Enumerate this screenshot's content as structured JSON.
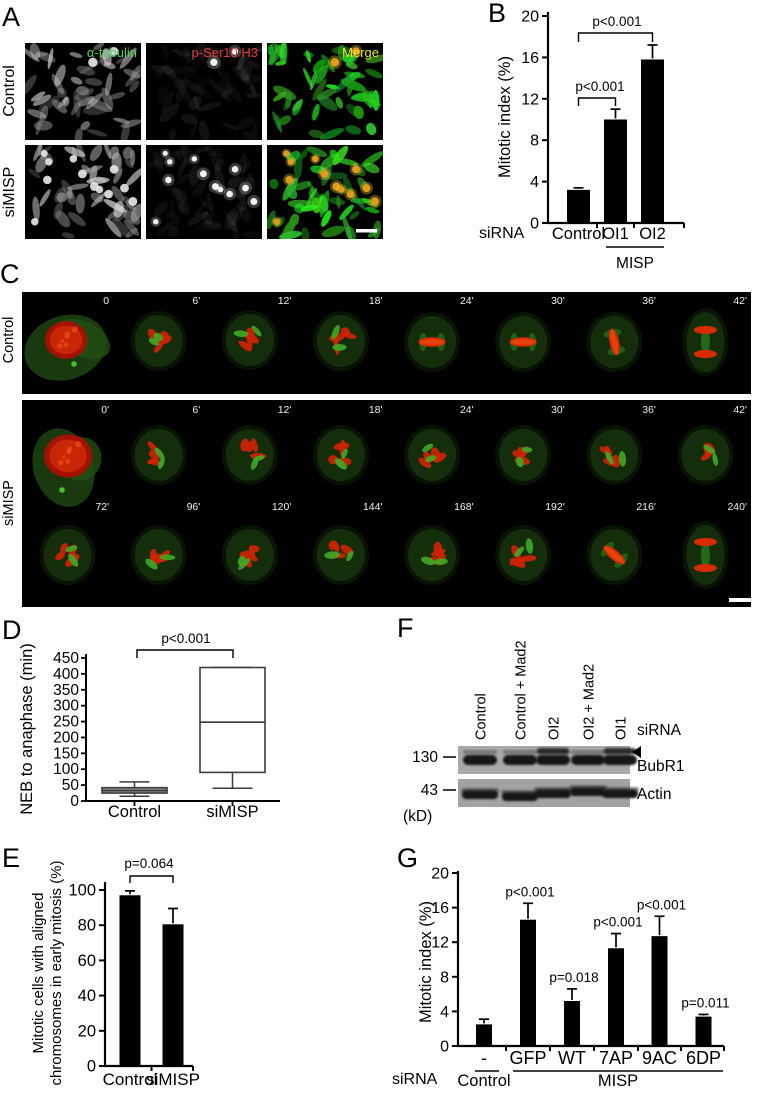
{
  "figure": {
    "panels": {
      "a": {
        "letter": "A",
        "rows": [
          "Control",
          "siMISP"
        ],
        "cols": [
          {
            "label": "α-tubulin",
            "color": "#55d455"
          },
          {
            "label": "p-Ser10 H3",
            "color": "#e83c3c"
          },
          {
            "label": "Merge",
            "color": "#e8e832"
          }
        ]
      },
      "b": {
        "letter": "B"
      },
      "c": {
        "letter": "C",
        "rows": [
          "Control",
          "siMISP"
        ],
        "control_times": [
          "0",
          "6'",
          "12'",
          "18'",
          "24'",
          "30'",
          "36'",
          "42'"
        ],
        "simisp_times_row1": [
          "0'",
          "6'",
          "12'",
          "18'",
          "24'",
          "30'",
          "36'",
          "42'"
        ],
        "simisp_times_row2": [
          "72'",
          "96'",
          "120'",
          "144'",
          "168'",
          "192'",
          "216'",
          "240'"
        ]
      },
      "d": {
        "letter": "D"
      },
      "e": {
        "letter": "E"
      },
      "f": {
        "letter": "F",
        "lanes": [
          "Control",
          "Control + Mad2",
          "OI2",
          "OI2 + Mad2",
          "OI1"
        ],
        "sirna_label": "siRNA",
        "marker_130": "130",
        "marker_43": "43",
        "kd_label": "(kD)",
        "band_labels": [
          "BubR1",
          "Actin"
        ]
      },
      "g": {
        "letter": "G"
      }
    }
  },
  "chart_data": [
    {
      "id": "B",
      "type": "bar",
      "ylabel": "Mitotic index (%)",
      "xlabel_prefix": "siRNA",
      "categories": [
        "Control",
        "OI1",
        "OI2"
      ],
      "values": [
        3.2,
        10.0,
        15.8
      ],
      "errors": [
        0.2,
        1.0,
        1.4
      ],
      "ylim": [
        0,
        20
      ],
      "yticks": [
        0,
        4,
        8,
        12,
        16,
        20
      ],
      "group_label": "MISP",
      "group_span": [
        "OI1",
        "OI2"
      ],
      "significance": [
        {
          "pair": [
            "Control",
            "OI1"
          ],
          "text": "p<0.001"
        },
        {
          "pair": [
            "Control",
            "OI2"
          ],
          "text": "p<0.001"
        }
      ]
    },
    {
      "id": "D",
      "type": "box",
      "ylabel": "NEB to anaphase (min)",
      "categories": [
        "Control",
        "siMISP"
      ],
      "boxes": [
        {
          "whisker_low": 15,
          "q1": 25,
          "median": 33,
          "q3": 42,
          "whisker_high": 60
        },
        {
          "whisker_low": 40,
          "q1": 90,
          "median": 248,
          "q3": 420,
          "whisker_high": 420
        }
      ],
      "ylim": [
        0,
        450
      ],
      "yticks": [
        0,
        50,
        100,
        150,
        200,
        250,
        300,
        350,
        400,
        450
      ],
      "significance": [
        {
          "pair": [
            "Control",
            "siMISP"
          ],
          "text": "p<0.001"
        }
      ]
    },
    {
      "id": "E",
      "type": "bar",
      "ylabel": "Mitotic cells with aligned chromosomes in early mitosis (%)",
      "ylabel_lines": [
        "Mitotic cells with aligned",
        "chromosomes in early mitosis (%)"
      ],
      "categories": [
        "Control",
        "siMISP"
      ],
      "values": [
        97,
        80.5
      ],
      "errors": [
        2.5,
        9
      ],
      "ylim": [
        0,
        100
      ],
      "yticks": [
        0,
        20,
        40,
        60,
        80,
        100
      ],
      "significance": [
        {
          "pair": [
            "Control",
            "siMISP"
          ],
          "text": "p=0.064"
        }
      ]
    },
    {
      "id": "G",
      "type": "bar",
      "ylabel": "Mitotic index (%)",
      "xlabel_prefix": "siRNA",
      "categories": [
        "-",
        "GFP",
        "WT",
        "7AP",
        "9AC",
        "6DP"
      ],
      "values": [
        2.5,
        14.6,
        5.2,
        11.3,
        12.7,
        3.4
      ],
      "errors": [
        0.6,
        1.9,
        1.4,
        1.7,
        2.3,
        0.25
      ],
      "ylim": [
        0,
        20
      ],
      "yticks": [
        0,
        4,
        8,
        12,
        16,
        20
      ],
      "bar_p_labels": [
        "",
        "p<0.001",
        "p=0.018",
        "p<0.001",
        "p<0.001",
        "p=0.011"
      ],
      "groups": [
        {
          "text": "Control",
          "cats": [
            "-"
          ]
        },
        {
          "text": "MISP",
          "cats": [
            "GFP",
            "WT",
            "7AP",
            "9AC",
            "6DP"
          ]
        }
      ]
    }
  ]
}
